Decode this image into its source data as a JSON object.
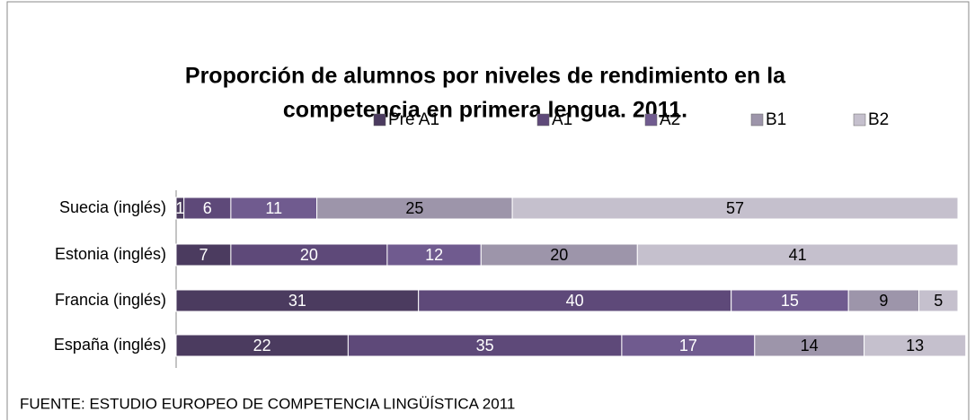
{
  "chart_data": {
    "type": "stacked-bar-horizontal",
    "title": "Proporción de alumnos por niveles de rendimiento en la competencia en primera lengua. 2011.",
    "title_lines": [
      "Proporción de alumnos por niveles de rendimiento en la",
      "competencia en primera lengua. 2011."
    ],
    "categories": [
      "Suecia (inglés)",
      "Estonia (inglés)",
      "Francia (inglés)",
      "España (inglés)"
    ],
    "series": [
      {
        "name": "Pre A1",
        "color": "#4b3b5f",
        "values": [
          1,
          7,
          31,
          22
        ]
      },
      {
        "name": "A1",
        "color": "#5e4979",
        "values": [
          6,
          20,
          40,
          35
        ]
      },
      {
        "name": "A2",
        "color": "#705b8f",
        "values": [
          11,
          12,
          15,
          17
        ]
      },
      {
        "name": "B1",
        "color": "#9d95aa",
        "values": [
          25,
          20,
          9,
          14
        ]
      },
      {
        "name": "B2",
        "color": "#c5c0cd",
        "values": [
          57,
          41,
          5,
          13
        ]
      }
    ],
    "xlim": [
      0,
      100
    ],
    "legend": "top",
    "source": "FUENTE: ESTUDIO EUROPEO DE COMPETENCIA LINGÜÍSTICA 2011"
  }
}
